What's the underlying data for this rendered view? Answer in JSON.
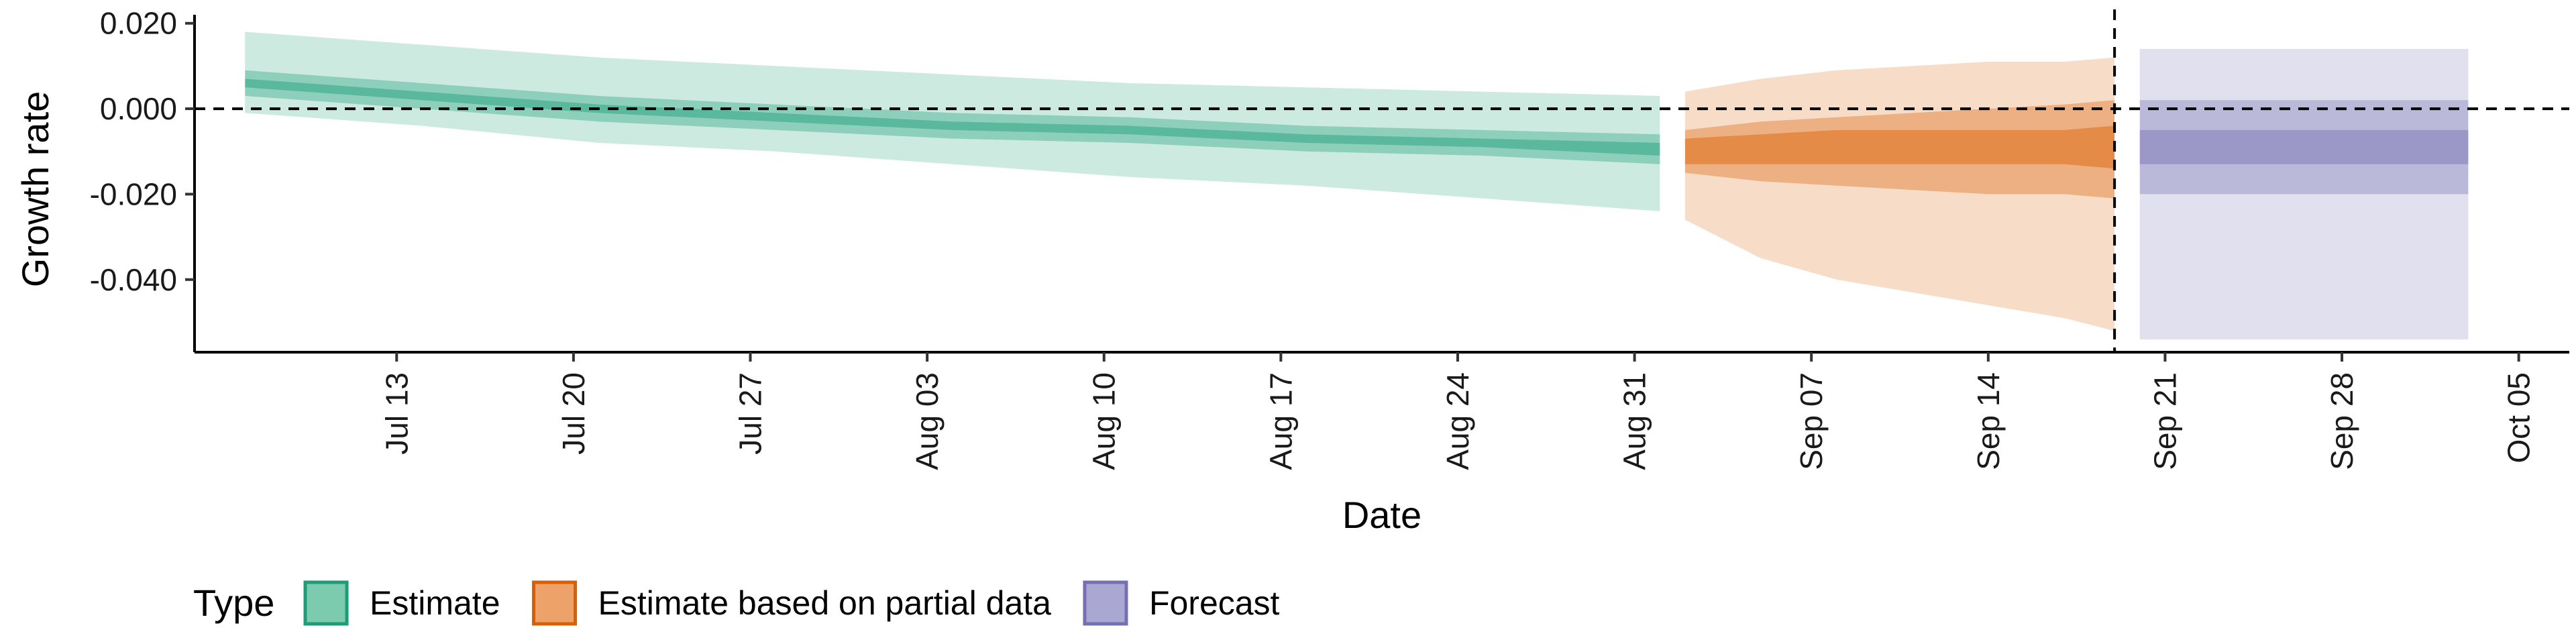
{
  "chart_data": {
    "type": "area",
    "xlabel": "Date",
    "ylabel": "Growth rate",
    "x_type": "date",
    "x_range": [
      "2020-07-05",
      "2020-10-07"
    ],
    "ylim": [
      -0.057,
      0.022
    ],
    "y_ticks": [
      0.02,
      0.0,
      -0.02,
      -0.04
    ],
    "y_tick_labels": [
      "0.020",
      "0.000",
      "-0.020",
      "-0.040"
    ],
    "x_ticks": [
      "2020-07-13",
      "2020-07-20",
      "2020-07-27",
      "2020-08-03",
      "2020-08-10",
      "2020-08-17",
      "2020-08-24",
      "2020-08-31",
      "2020-09-07",
      "2020-09-14",
      "2020-09-21",
      "2020-09-28",
      "2020-10-05"
    ],
    "x_tick_labels": [
      "Jul 13",
      "Jul 20",
      "Jul 27",
      "Aug 03",
      "Aug 10",
      "Aug 17",
      "Aug 24",
      "Aug 31",
      "Sep 07",
      "Sep 14",
      "Sep 21",
      "Sep 28",
      "Oct 05"
    ],
    "hline_y": 0.0,
    "vline_x": "2020-09-19",
    "grid": false,
    "legend": {
      "title": "Type",
      "position": "bottom",
      "entries": [
        {
          "label": "Estimate",
          "fill": "#7ccbaf",
          "border": "#1b9e77"
        },
        {
          "label": "Estimate based on partial data",
          "fill": "#eda26a",
          "border": "#d95f02"
        },
        {
          "label": "Forecast",
          "fill": "#aaa7d2",
          "border": "#7570b3"
        }
      ]
    },
    "series": [
      {
        "name": "Estimate",
        "color": "#1b9e77",
        "x": [
          "2020-07-07",
          "2020-07-14",
          "2020-07-21",
          "2020-07-28",
          "2020-08-04",
          "2020-08-11",
          "2020-08-18",
          "2020-08-25",
          "2020-09-01"
        ],
        "median": [
          0.006,
          0.003,
          0.0,
          -0.002,
          -0.004,
          -0.005,
          -0.007,
          -0.008,
          -0.009
        ],
        "lower_90": [
          -0.001,
          -0.004,
          -0.008,
          -0.01,
          -0.013,
          -0.016,
          -0.018,
          -0.021,
          -0.024
        ],
        "upper_90": [
          0.018,
          0.015,
          0.012,
          0.01,
          0.008,
          0.006,
          0.005,
          0.004,
          0.003
        ],
        "lower_50": [
          0.003,
          0.0,
          -0.003,
          -0.005,
          -0.007,
          -0.008,
          -0.01,
          -0.011,
          -0.013
        ],
        "upper_50": [
          0.009,
          0.006,
          0.003,
          0.001,
          -0.001,
          -0.002,
          -0.004,
          -0.005,
          -0.006
        ],
        "lower_20": [
          0.005,
          0.002,
          -0.001,
          -0.003,
          -0.005,
          -0.006,
          -0.008,
          -0.009,
          -0.011
        ],
        "upper_20": [
          0.007,
          0.004,
          0.001,
          -0.001,
          -0.003,
          -0.004,
          -0.006,
          -0.007,
          -0.008
        ]
      },
      {
        "name": "Estimate based on partial data",
        "color": "#d95f02",
        "x": [
          "2020-09-02",
          "2020-09-05",
          "2020-09-08",
          "2020-09-11",
          "2020-09-14",
          "2020-09-17",
          "2020-09-19"
        ],
        "median": [
          -0.01,
          -0.01,
          -0.009,
          -0.009,
          -0.009,
          -0.009,
          -0.009
        ],
        "lower_90": [
          -0.026,
          -0.035,
          -0.04,
          -0.043,
          -0.046,
          -0.049,
          -0.052
        ],
        "upper_90": [
          0.004,
          0.007,
          0.009,
          0.01,
          0.011,
          0.011,
          0.012
        ],
        "lower_50": [
          -0.015,
          -0.017,
          -0.018,
          -0.019,
          -0.02,
          -0.02,
          -0.021
        ],
        "upper_50": [
          -0.005,
          -0.003,
          -0.002,
          -0.001,
          0.0,
          0.001,
          0.002
        ],
        "lower_20": [
          -0.013,
          -0.013,
          -0.013,
          -0.013,
          -0.013,
          -0.013,
          -0.014
        ],
        "upper_20": [
          -0.007,
          -0.006,
          -0.005,
          -0.005,
          -0.005,
          -0.005,
          -0.004
        ]
      },
      {
        "name": "Forecast",
        "color": "#7570b3",
        "x": [
          "2020-09-20",
          "2020-10-03"
        ],
        "median": [
          -0.009,
          -0.009
        ],
        "lower_90": [
          -0.054,
          -0.054
        ],
        "upper_90": [
          0.014,
          0.014
        ],
        "lower_50": [
          -0.02,
          -0.02
        ],
        "upper_50": [
          0.002,
          0.002
        ],
        "lower_20": [
          -0.013,
          -0.013
        ],
        "upper_20": [
          -0.005,
          -0.005
        ]
      }
    ]
  }
}
